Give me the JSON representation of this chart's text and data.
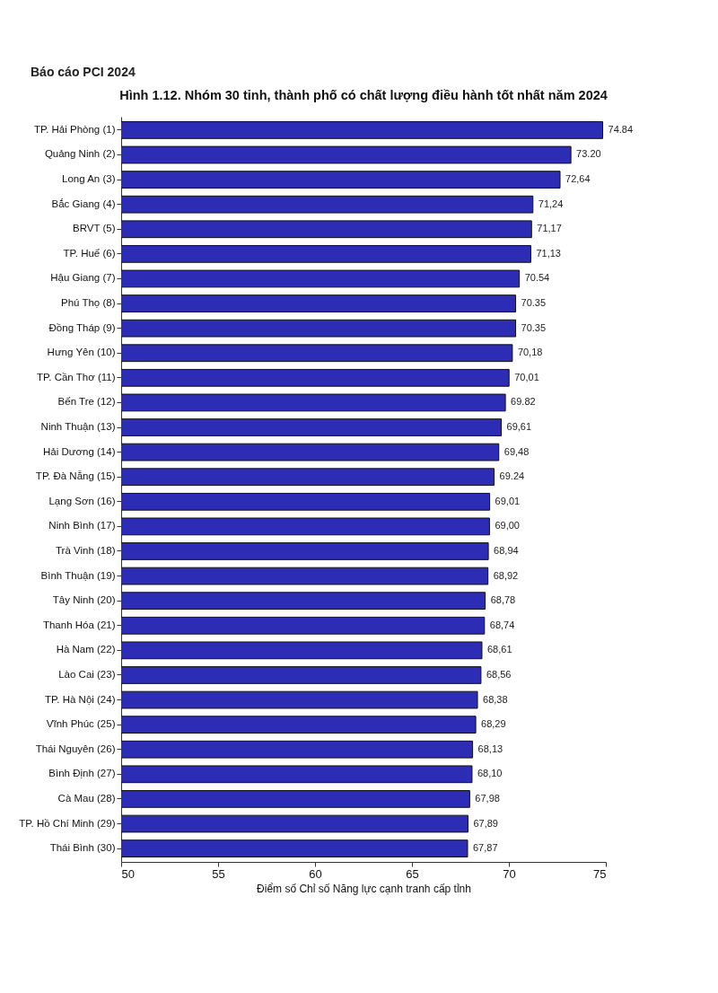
{
  "chart_data": {
    "type": "bar",
    "orientation": "horizontal",
    "title": "Hình 1.12. Nhóm 30 tỉnh, thành phố có chất lượng điều hành tốt nhất năm 2024",
    "xlabel": "Điểm số Chỉ số Năng lực cạnh tranh cấp tỉnh",
    "annotations": [
      "Báo cáo PCI 2024"
    ],
    "categories": [
      "TP. Hải Phòng (1)",
      "Quảng Ninh (2)",
      "Long An (3)",
      "Bắc Giang (4)",
      "BRVT (5)",
      "TP. Huế (6)",
      "Hậu Giang (7)",
      "Phú Thọ (8)",
      "Đồng Tháp (9)",
      "Hưng Yên (10)",
      "TP. Cần Thơ (11)",
      "Bến Tre (12)",
      "Ninh Thuận (13)",
      "Hải Dương (14)",
      "TP. Đà Nẵng (15)",
      "Lạng Sơn (16)",
      "Ninh Bình (17)",
      "Trà Vinh (18)",
      "Bình Thuận (19)",
      "Tây Ninh (20)",
      "Thanh Hóa (21)",
      "Hà Nam (22)",
      "Lào Cai (23)",
      "TP. Hà Nội (24)",
      "Vĩnh Phúc (25)",
      "Thái Nguyên (26)",
      "Bình Định (27)",
      "Cà Mau (28)",
      "TP. Hồ Chí Minh (29)",
      "Thái Bình (30)"
    ],
    "values": [
      74.84,
      73.2,
      72.64,
      71.24,
      71.17,
      71.13,
      70.54,
      70.35,
      70.35,
      70.18,
      70.01,
      69.82,
      69.61,
      69.48,
      69.24,
      69.01,
      69.0,
      68.94,
      68.92,
      68.78,
      68.74,
      68.61,
      68.56,
      68.38,
      68.29,
      68.13,
      68.1,
      67.98,
      67.89,
      67.87
    ],
    "value_labels": [
      "74.84",
      "73.20",
      "72,64",
      "71,24",
      "71,17",
      "71,13",
      "70.54",
      "70.35",
      "70.35",
      "70,18",
      "70,01",
      "69.82",
      "69,61",
      "69,48",
      "69.24",
      "69,01",
      "69,00",
      "68,94",
      "68,92",
      "68,78",
      "68,74",
      "68,61",
      "68,56",
      "68,38",
      "68,29",
      "68,13",
      "68,10",
      "67,98",
      "67,89",
      "67,87"
    ],
    "color": "#2c2cb4",
    "xlim": [
      50,
      75
    ],
    "xticks": [
      50,
      55,
      60,
      65,
      70,
      75
    ],
    "grid": false
  }
}
